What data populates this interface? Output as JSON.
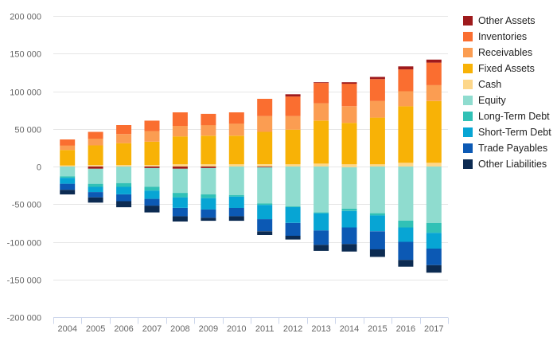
{
  "chart_data": {
    "type": "bar",
    "stacked": true,
    "categories": [
      "2004",
      "2005",
      "2006",
      "2007",
      "2008",
      "2009",
      "2010",
      "2011",
      "2012",
      "2013",
      "2014",
      "2015",
      "2016",
      "2017"
    ],
    "ylim": [
      -200000,
      200000
    ],
    "yticks": [
      200000,
      150000,
      100000,
      50000,
      0,
      -50000,
      -100000,
      -150000,
      -200000
    ],
    "ytick_labels": [
      "200 000",
      "150 000",
      "100 000",
      "50 000",
      "0",
      "-50 000",
      "-100 000",
      "-150 000",
      "-200 000"
    ],
    "grid": true,
    "legend_position": "right",
    "assets": [
      {
        "name": "Cash",
        "color": "#fdd78a",
        "values": [
          1500,
          2000,
          2000,
          2000,
          3000,
          3000,
          3000,
          3000,
          3000,
          4000,
          3000,
          3000,
          5000,
          5000
        ]
      },
      {
        "name": "Fixed Assets",
        "color": "#f8b206",
        "values": [
          20500,
          26000,
          29000,
          31000,
          37000,
          38000,
          38000,
          43000,
          46000,
          57000,
          55000,
          62000,
          75000,
          82000
        ]
      },
      {
        "name": "Receivables",
        "color": "#fb9d52",
        "values": [
          6000,
          9000,
          12000,
          14000,
          14000,
          14000,
          16000,
          21000,
          18000,
          23000,
          22000,
          22000,
          20000,
          21000
        ]
      },
      {
        "name": "Inventories",
        "color": "#fa6e30",
        "values": [
          8000,
          9000,
          12000,
          14000,
          18000,
          15000,
          15000,
          23000,
          26000,
          27000,
          30000,
          29000,
          29000,
          30000
        ]
      },
      {
        "name": "Other Assets",
        "color": "#9e1a1c",
        "values": [
          0,
          0,
          0,
          0,
          0,
          0,
          0,
          0,
          3000,
          1000,
          2000,
          3000,
          4000,
          4000
        ]
      }
    ],
    "liabilities": [
      {
        "name": "Equity",
        "color": "#8fdccf",
        "values": [
          -13000,
          -20000,
          -22000,
          -25000,
          -32000,
          -35000,
          -38000,
          -48000,
          -53000,
          -61000,
          -55000,
          -62000,
          -72000,
          -75000
        ]
      },
      {
        "name": "Long-Term Debt",
        "color": "#31c1b6",
        "values": [
          -2000,
          -4000,
          -5000,
          -5000,
          -6000,
          -5000,
          -2000,
          -2000,
          -1000,
          -1000,
          -3000,
          -3000,
          -9000,
          -13000
        ]
      },
      {
        "name": "Short-Term Debt",
        "color": "#07a5d4",
        "values": [
          -8000,
          -7000,
          -10000,
          -11000,
          -14000,
          -15000,
          -15000,
          -19000,
          -21000,
          -23000,
          -22000,
          -21000,
          -19000,
          -21000
        ]
      },
      {
        "name": "Trade Payables",
        "color": "#0c59b4",
        "values": [
          -8000,
          -7000,
          -9000,
          -9000,
          -11000,
          -11000,
          -11000,
          -16000,
          -17000,
          -19000,
          -22000,
          -24000,
          -24000,
          -22000
        ]
      },
      {
        "name": "Other Liabilities",
        "color": "#0c2b52",
        "values": [
          -6000,
          -7000,
          -8000,
          -9000,
          -7000,
          -4000,
          -6000,
          -5000,
          -5000,
          -8000,
          -10000,
          -10000,
          -9000,
          -10000
        ]
      }
    ],
    "inline_negative_markers": [
      {
        "name": "Other Assets",
        "color": "#9e1a1c",
        "values": [
          0,
          -3000,
          0,
          -2000,
          -3000,
          -2000,
          0,
          -1000,
          0,
          0,
          0,
          0,
          0,
          0
        ]
      },
      {
        "name": "Cash",
        "color": "#fdd78a",
        "values": [
          0,
          0,
          0,
          0,
          0,
          0,
          0,
          0,
          0,
          0,
          -1000,
          0,
          0,
          0
        ]
      }
    ],
    "legend": [
      {
        "label": "Other Assets",
        "color": "#9e1a1c"
      },
      {
        "label": "Inventories",
        "color": "#fa6e30"
      },
      {
        "label": "Receivables",
        "color": "#fb9d52"
      },
      {
        "label": "Fixed Assets",
        "color": "#f8b206"
      },
      {
        "label": "Cash",
        "color": "#fdd78a"
      },
      {
        "label": "Equity",
        "color": "#8fdccf"
      },
      {
        "label": "Long-Term Debt",
        "color": "#31c1b6"
      },
      {
        "label": "Short-Term Debt",
        "color": "#07a5d4"
      },
      {
        "label": "Trade Payables",
        "color": "#0c59b4"
      },
      {
        "label": "Other Liabilities",
        "color": "#0c2b52"
      }
    ]
  }
}
